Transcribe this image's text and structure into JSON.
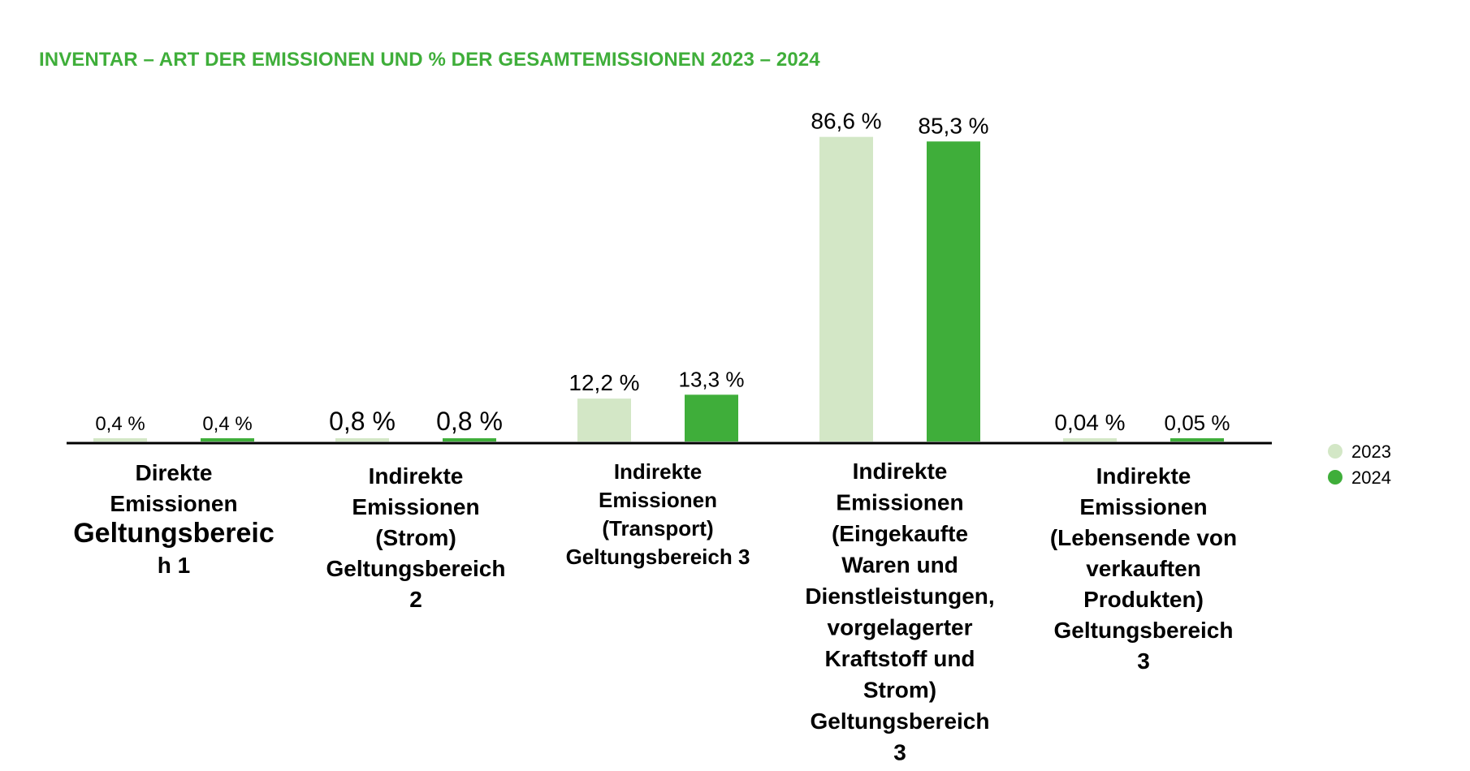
{
  "colors": {
    "title": "#3fae3a",
    "series_2023": "#d3e7c6",
    "series_2024": "#3fae3a",
    "axis": "#000000"
  },
  "chart_data": {
    "type": "bar",
    "title": "INVENTAR – ART DER EMISSIONEN UND % DER GESAMTEMISSIONEN 2023 – 2024",
    "ylim": [
      0,
      100
    ],
    "grid": false,
    "legend_position": "right",
    "categories": [
      [
        "Direkte",
        "Emissionen",
        "Geltungsbereic",
        "h 1"
      ],
      [
        "Indirekte",
        "Emissionen",
        "(Strom)",
        "Geltungsbereich",
        "2"
      ],
      [
        "Indirekte",
        "Emissionen",
        "(Transport)",
        "Geltungsbereich 3"
      ],
      [
        "Indirekte",
        "Emissionen",
        "(Eingekaufte",
        "Waren und",
        "Dienstleistungen,",
        "vorgelagerter",
        "Kraftstoff und",
        "Strom)",
        "Geltungsbereich",
        "3"
      ],
      [
        "Indirekte",
        "Emissionen",
        "(Lebensende von",
        "verkauften",
        "Produkten)",
        "Geltungsbereich",
        "3"
      ]
    ],
    "series": [
      {
        "name": "2023",
        "values": [
          0.4,
          0.8,
          12.2,
          86.6,
          0.04
        ],
        "labels": [
          "0,4 %",
          "0,8 %",
          "12,2 %",
          "86,6 %",
          "0,04 %"
        ]
      },
      {
        "name": "2024",
        "values": [
          0.4,
          0.8,
          13.3,
          85.3,
          0.05
        ],
        "labels": [
          "0,4 %",
          "0,8 %",
          "13,3 %",
          "85,3 %",
          "0,05 %"
        ]
      }
    ]
  }
}
